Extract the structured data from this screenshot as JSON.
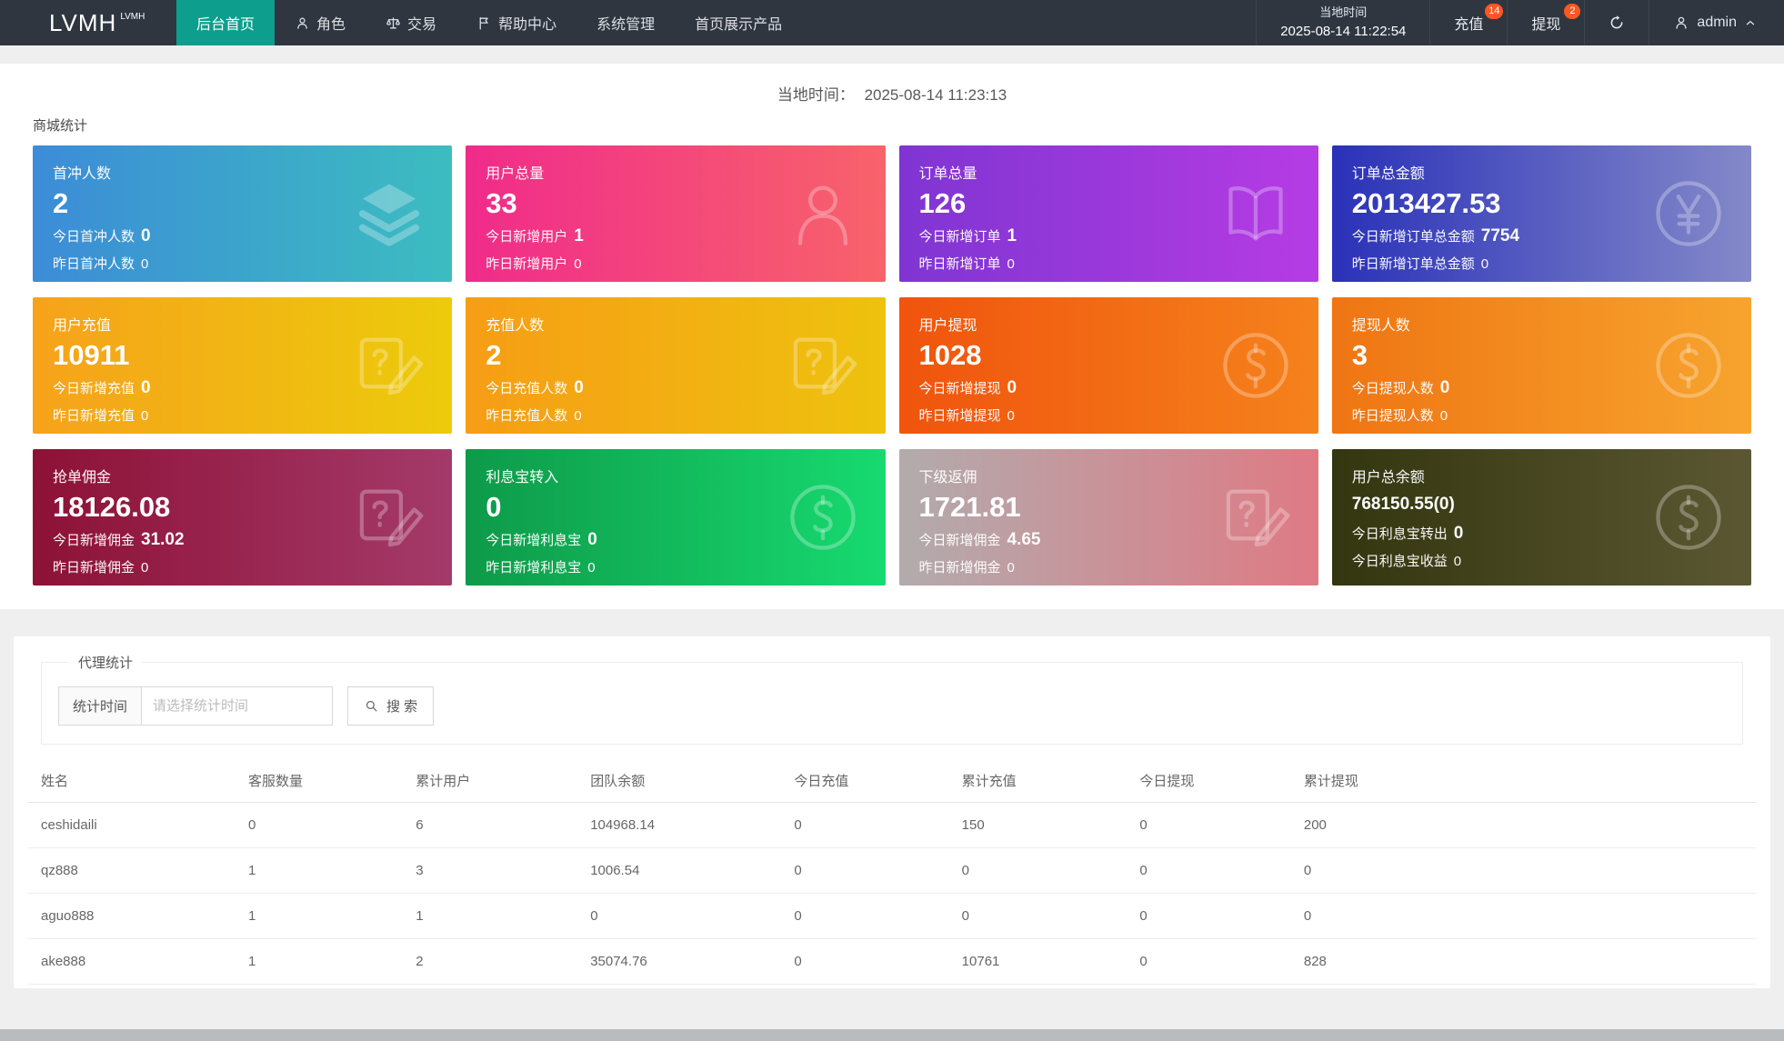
{
  "theme": {
    "navbar_bg": "#2f3640",
    "menu_active": "#0d9e8d",
    "badge_color": "#ff5722",
    "page_bg": "#efefef"
  },
  "navbar": {
    "logo": "LVMH",
    "logo_sup": "LVMH",
    "menu": [
      {
        "id": "dashboard",
        "label": "后台首页",
        "active": true
      },
      {
        "id": "roles",
        "label": "角色",
        "icon": "user-icon"
      },
      {
        "id": "trade",
        "label": "交易",
        "icon": "scales-icon"
      },
      {
        "id": "help-center",
        "label": "帮助中心",
        "icon": "flag-icon"
      },
      {
        "id": "system-admin",
        "label": "系统管理"
      },
      {
        "id": "home-products",
        "label": "首页展示产品"
      }
    ],
    "local_time_label": "当地时间",
    "local_time_value": "2025-08-14 11:22:54",
    "recharge_label": "充值",
    "recharge_badge": "14",
    "withdraw_label": "提现",
    "withdraw_badge": "2",
    "username": "admin"
  },
  "overview": {
    "local_time_label": "当地时间：",
    "local_time_value": "2025-08-14 11:23:13",
    "section_title": "商城统计"
  },
  "cards": [
    {
      "id": "first-recharge-users",
      "title": "首冲人数",
      "value": "2",
      "icon": "layers-icon",
      "colors": [
        "#3c8cd7",
        "#3cbdc0"
      ],
      "lines": [
        {
          "label": "今日首冲人数",
          "value": "0",
          "strong": true
        },
        {
          "label": "昨日首冲人数",
          "value": "0"
        }
      ]
    },
    {
      "id": "total-users",
      "title": "用户总量",
      "value": "33",
      "icon": "person-icon",
      "colors": [
        "#f02b8b",
        "#f8636a"
      ],
      "lines": [
        {
          "label": "今日新增用户",
          "value": "1",
          "strong": true
        },
        {
          "label": "昨日新增用户",
          "value": "0"
        }
      ]
    },
    {
      "id": "total-orders",
      "title": "订单总量",
      "value": "126",
      "icon": "book-icon",
      "colors": [
        "#7f35d2",
        "#b63ce4"
      ],
      "lines": [
        {
          "label": "今日新增订单",
          "value": "1",
          "strong": true
        },
        {
          "label": "昨日新增订单",
          "value": "0"
        }
      ]
    },
    {
      "id": "total-order-amount",
      "title": "订单总金额",
      "value": "2013427.53",
      "icon": "yen-circle-icon",
      "colors": [
        "#2a31b8",
        "#8489c9"
      ],
      "lines": [
        {
          "label": "今日新增订单总金额",
          "value": "7754",
          "strong": true
        },
        {
          "label": "昨日新增订单总金额",
          "value": "0"
        }
      ]
    },
    {
      "id": "user-recharge",
      "title": "用户充值",
      "value": "10911",
      "icon": "contract-edit-icon",
      "colors": [
        "#f6a21b",
        "#eccb0b"
      ],
      "lines": [
        {
          "label": "今日新增充值",
          "value": "0",
          "strong": true
        },
        {
          "label": "昨日新增充值",
          "value": "0"
        }
      ]
    },
    {
      "id": "recharge-users",
      "title": "充值人数",
      "value": "2",
      "icon": "contract-edit-icon",
      "colors": [
        "#f69d15",
        "#eec20e"
      ],
      "lines": [
        {
          "label": "今日充值人数",
          "value": "0",
          "strong": true
        },
        {
          "label": "昨日充值人数",
          "value": "0"
        }
      ]
    },
    {
      "id": "user-withdraw",
      "title": "用户提现",
      "value": "1028",
      "icon": "dollar-circle-icon",
      "colors": [
        "#f0540d",
        "#f5821c"
      ],
      "lines": [
        {
          "label": "今日新增提现",
          "value": "0",
          "strong": true
        },
        {
          "label": "昨日新增提现",
          "value": "0"
        }
      ]
    },
    {
      "id": "withdraw-users",
      "title": "提现人数",
      "value": "3",
      "icon": "dollar-circle-icon",
      "colors": [
        "#ef7513",
        "#f7a42e"
      ],
      "lines": [
        {
          "label": "今日提现人数",
          "value": "0",
          "strong": true
        },
        {
          "label": "昨日提现人数",
          "value": "0"
        }
      ]
    },
    {
      "id": "order-commission",
      "title": "抢单佣金",
      "value": "18126.08",
      "icon": "contract-edit-icon",
      "colors": [
        "#8d1136",
        "#a43a6a"
      ],
      "lines": [
        {
          "label": "今日新增佣金",
          "value": "31.02",
          "strong": true
        },
        {
          "label": "昨日新增佣金",
          "value": "0"
        }
      ]
    },
    {
      "id": "interest-transfer-in",
      "title": "利息宝转入",
      "value": "0",
      "icon": "dollar-circle-icon",
      "colors": [
        "#0e9a49",
        "#17da70"
      ],
      "lines": [
        {
          "label": "今日新增利息宝",
          "value": "0",
          "strong": true
        },
        {
          "label": "昨日新增利息宝",
          "value": "0"
        }
      ]
    },
    {
      "id": "sub-rebate",
      "title": "下级返佣",
      "value": "1721.81",
      "icon": "contract-edit-icon",
      "colors": [
        "#b2abad",
        "#df7a84"
      ],
      "lines": [
        {
          "label": "今日新增佣金",
          "value": "4.65",
          "strong": true
        },
        {
          "label": "昨日新增佣金",
          "value": "0"
        }
      ]
    },
    {
      "id": "user-total-balance",
      "title": "用户总余额",
      "value": "768150.55(0)",
      "value_small": true,
      "icon": "dollar-circle-icon",
      "colors": [
        "#33360f",
        "#5b5733"
      ],
      "lines": [
        {
          "label": "今日利息宝转出",
          "value": "0",
          "strong": true
        },
        {
          "label": "今日利息宝收益",
          "value": "0"
        }
      ]
    }
  ],
  "agent": {
    "legend": "代理统计",
    "filter_label": "统计时间",
    "filter_placeholder": "请选择统计时间",
    "search_label": "搜 索",
    "table": {
      "headers": [
        "姓名",
        "客服数量",
        "累计用户",
        "团队余额",
        "今日充值",
        "累计充值",
        "今日提现",
        "累计提现"
      ],
      "rows": [
        [
          "ceshidaili",
          "0",
          "6",
          "104968.14",
          "0",
          "150",
          "0",
          "200"
        ],
        [
          "qz888",
          "1",
          "3",
          "1006.54",
          "0",
          "0",
          "0",
          "0"
        ],
        [
          "aguo888",
          "1",
          "1",
          "0",
          "0",
          "0",
          "0",
          "0"
        ],
        [
          "ake888",
          "1",
          "2",
          "35074.76",
          "0",
          "10761",
          "0",
          "828"
        ]
      ]
    }
  }
}
